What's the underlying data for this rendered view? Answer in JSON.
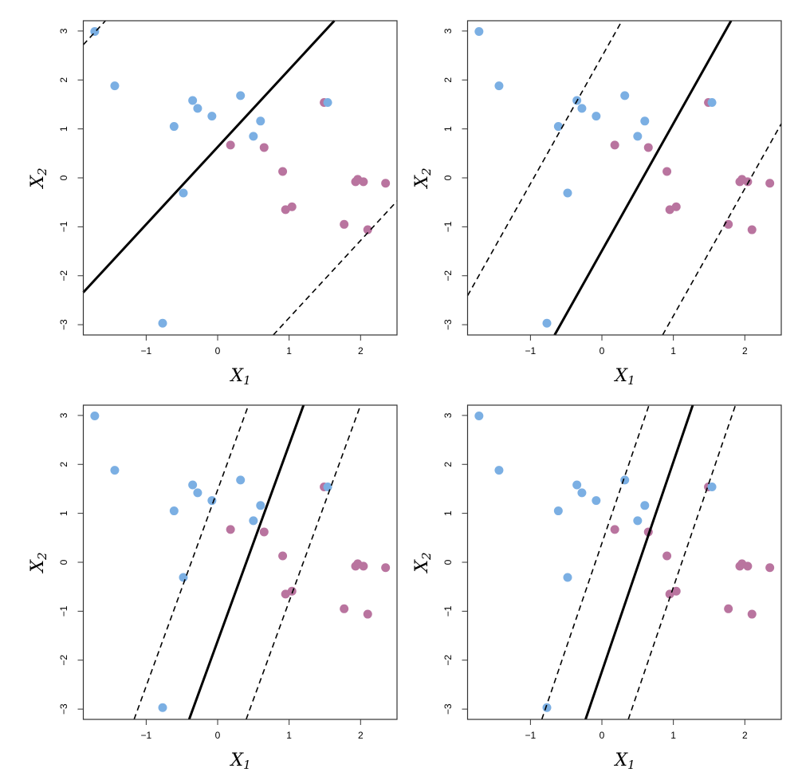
{
  "chart_data": [
    {
      "type": "scatter",
      "xlabel": "X",
      "xlabel_sub": "1",
      "ylabel": "X",
      "ylabel_sub": "2",
      "xlim": [
        -1.88,
        2.51
      ],
      "ylim": [
        -3.21,
        3.21
      ],
      "xticks": [
        "-1",
        "0",
        "1",
        "2"
      ],
      "yticks": [
        "-3",
        "-2",
        "-1",
        "0",
        "1",
        "2",
        "3"
      ],
      "hyperplane": {
        "slope": 1.58,
        "intercept": 0.63
      },
      "margins": [
        {
          "slope": 1.58,
          "intercept": 5.69
        },
        {
          "slope": 1.58,
          "intercept": -4.44
        }
      ]
    },
    {
      "type": "scatter",
      "xlabel": "X",
      "xlabel_sub": "1",
      "ylabel": "X",
      "ylabel_sub": "2",
      "xlim": [
        -1.88,
        2.51
      ],
      "ylim": [
        -3.21,
        3.21
      ],
      "xticks": [
        "-1",
        "0",
        "1",
        "2"
      ],
      "yticks": [
        "-3",
        "-2",
        "-1",
        "0",
        "1",
        "2",
        "3"
      ],
      "hyperplane": {
        "slope": 2.6,
        "intercept": -1.49
      },
      "margins": [
        {
          "slope": 2.6,
          "intercept": 2.48
        },
        {
          "slope": 2.6,
          "intercept": -5.42
        }
      ]
    },
    {
      "type": "scatter",
      "xlabel": "X",
      "xlabel_sub": "1",
      "ylabel": "X",
      "ylabel_sub": "2",
      "xlim": [
        -1.88,
        2.51
      ],
      "ylim": [
        -3.21,
        3.21
      ],
      "xticks": [
        "-1",
        "0",
        "1",
        "2"
      ],
      "yticks": [
        "-3",
        "-2",
        "-1",
        "0",
        "1",
        "2",
        "3"
      ],
      "hyperplane": {
        "slope": 4.01,
        "intercept": -1.61
      },
      "margins": [
        {
          "slope": 4.01,
          "intercept": 1.48
        },
        {
          "slope": 4.01,
          "intercept": -4.81
        }
      ]
    },
    {
      "type": "scatter",
      "xlabel": "X",
      "xlabel_sub": "1",
      "ylabel": "X",
      "ylabel_sub": "2",
      "xlim": [
        -1.88,
        2.51
      ],
      "ylim": [
        -3.21,
        3.21
      ],
      "xticks": [
        "-1",
        "0",
        "1",
        "2"
      ],
      "yticks": [
        "-3",
        "-2",
        "-1",
        "0",
        "1",
        "2",
        "3"
      ],
      "hyperplane": {
        "slope": 4.28,
        "intercept": -2.23
      },
      "margins": [
        {
          "slope": 4.28,
          "intercept": 0.39
        },
        {
          "slope": 4.28,
          "intercept": -4.79
        }
      ]
    }
  ],
  "points": {
    "blue": [
      [
        -1.72,
        2.99
      ],
      [
        -1.44,
        1.88
      ],
      [
        -0.61,
        1.05
      ],
      [
        -0.35,
        1.58
      ],
      [
        -0.28,
        1.42
      ],
      [
        -0.08,
        1.26
      ],
      [
        0.32,
        1.68
      ],
      [
        0.6,
        1.16
      ],
      [
        0.5,
        0.85
      ],
      [
        -0.48,
        -0.31
      ],
      [
        -0.77,
        -2.97
      ],
      [
        1.54,
        1.54
      ]
    ],
    "purple": [
      [
        1.49,
        1.54
      ],
      [
        0.18,
        0.67
      ],
      [
        0.65,
        0.62
      ],
      [
        0.91,
        0.13
      ],
      [
        0.95,
        -0.65
      ],
      [
        1.04,
        -0.59
      ],
      [
        1.93,
        -0.08
      ],
      [
        1.96,
        -0.03
      ],
      [
        2.04,
        -0.08
      ],
      [
        2.35,
        -0.11
      ],
      [
        1.77,
        -0.95
      ],
      [
        2.1,
        -1.06
      ]
    ]
  },
  "colors": {
    "blue": "#7bafe3",
    "purple": "#b9749f",
    "line": "#000000"
  }
}
